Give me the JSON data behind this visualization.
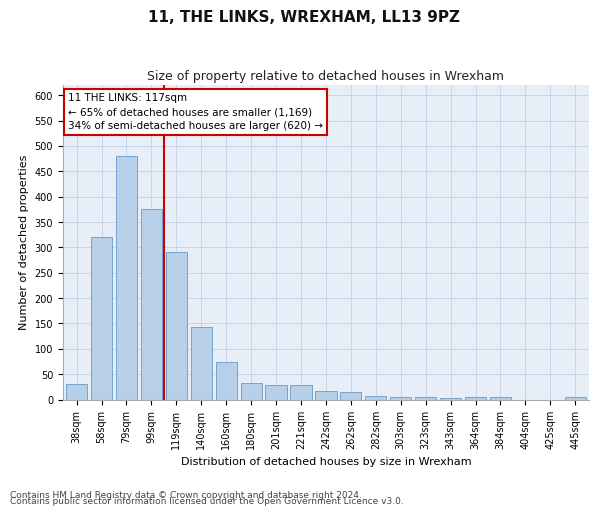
{
  "title": "11, THE LINKS, WREXHAM, LL13 9PZ",
  "subtitle": "Size of property relative to detached houses in Wrexham",
  "xlabel": "Distribution of detached houses by size in Wrexham",
  "ylabel": "Number of detached properties",
  "categories": [
    "38sqm",
    "58sqm",
    "79sqm",
    "99sqm",
    "119sqm",
    "140sqm",
    "160sqm",
    "180sqm",
    "201sqm",
    "221sqm",
    "242sqm",
    "262sqm",
    "282sqm",
    "303sqm",
    "323sqm",
    "343sqm",
    "364sqm",
    "384sqm",
    "404sqm",
    "425sqm",
    "445sqm"
  ],
  "values": [
    30,
    320,
    480,
    375,
    290,
    143,
    75,
    32,
    29,
    28,
    16,
    15,
    8,
    5,
    5,
    4,
    5,
    5,
    0,
    0,
    5
  ],
  "bar_color": "#b8cfe8",
  "bar_edge_color": "#6699cc",
  "marker_line_color": "#cc0000",
  "annotation_text": "11 THE LINKS: 117sqm\n← 65% of detached houses are smaller (1,169)\n34% of semi-detached houses are larger (620) →",
  "annotation_box_color": "#ffffff",
  "annotation_box_edge": "#cc0000",
  "ylim_max": 620,
  "yticks": [
    0,
    50,
    100,
    150,
    200,
    250,
    300,
    350,
    400,
    450,
    500,
    550,
    600
  ],
  "footer_line1": "Contains HM Land Registry data © Crown copyright and database right 2024.",
  "footer_line2": "Contains public sector information licensed under the Open Government Licence v3.0.",
  "grid_color": "#c8d4e8",
  "background_color": "#e8eef8",
  "title_fontsize": 11,
  "subtitle_fontsize": 9,
  "axis_label_fontsize": 8,
  "tick_fontsize": 7,
  "annotation_fontsize": 7.5,
  "footer_fontsize": 6.5
}
